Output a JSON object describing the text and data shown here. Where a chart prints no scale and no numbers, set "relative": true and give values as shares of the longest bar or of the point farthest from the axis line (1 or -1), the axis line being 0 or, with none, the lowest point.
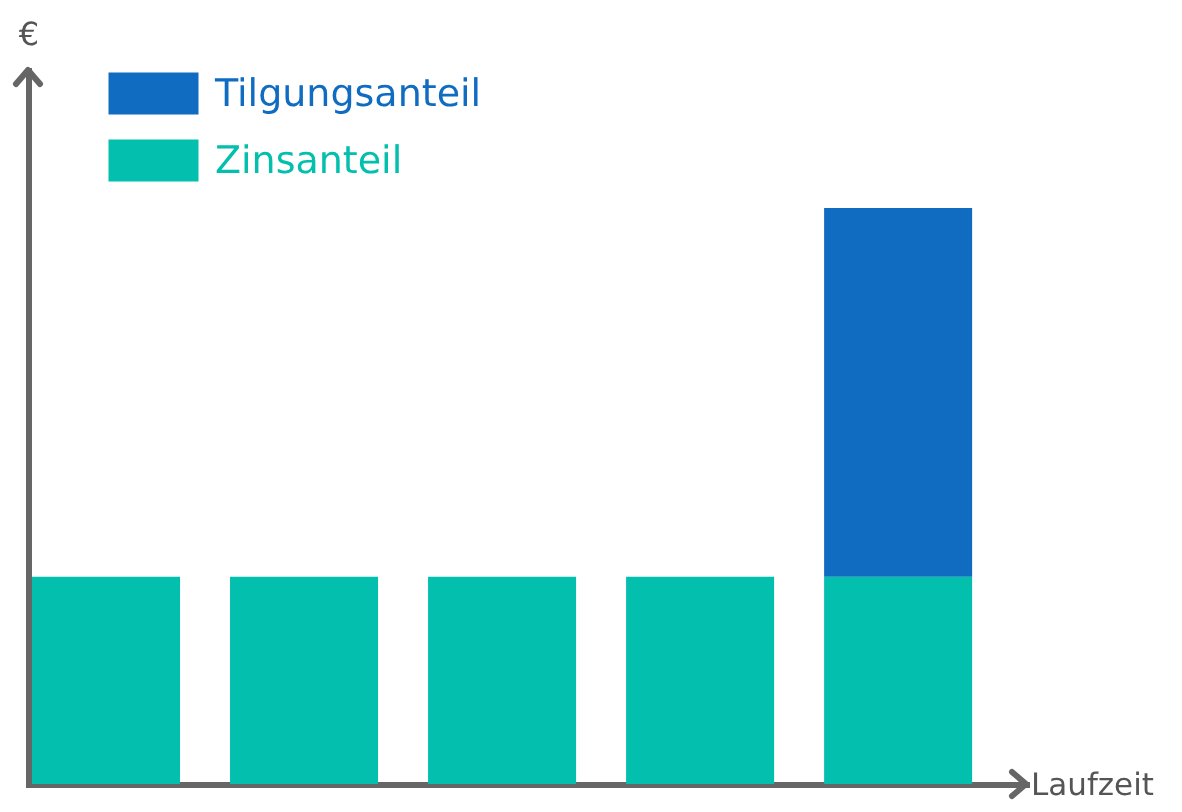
{
  "chart_data": {
    "type": "bar",
    "stacked": true,
    "relative": true,
    "xlabel": "Laufzeit",
    "ylabel": "€",
    "categories": [
      null,
      null,
      null,
      null,
      null
    ],
    "series": [
      {
        "name": "Zinsanteil",
        "color": "#03bfad",
        "values": [
          0.36,
          0.36,
          0.36,
          0.36,
          0.36
        ]
      },
      {
        "name": "Tilgungsanteil",
        "color": "#0f6cc1",
        "values": [
          null,
          null,
          null,
          null,
          0.64
        ]
      }
    ],
    "legend": "top left"
  }
}
